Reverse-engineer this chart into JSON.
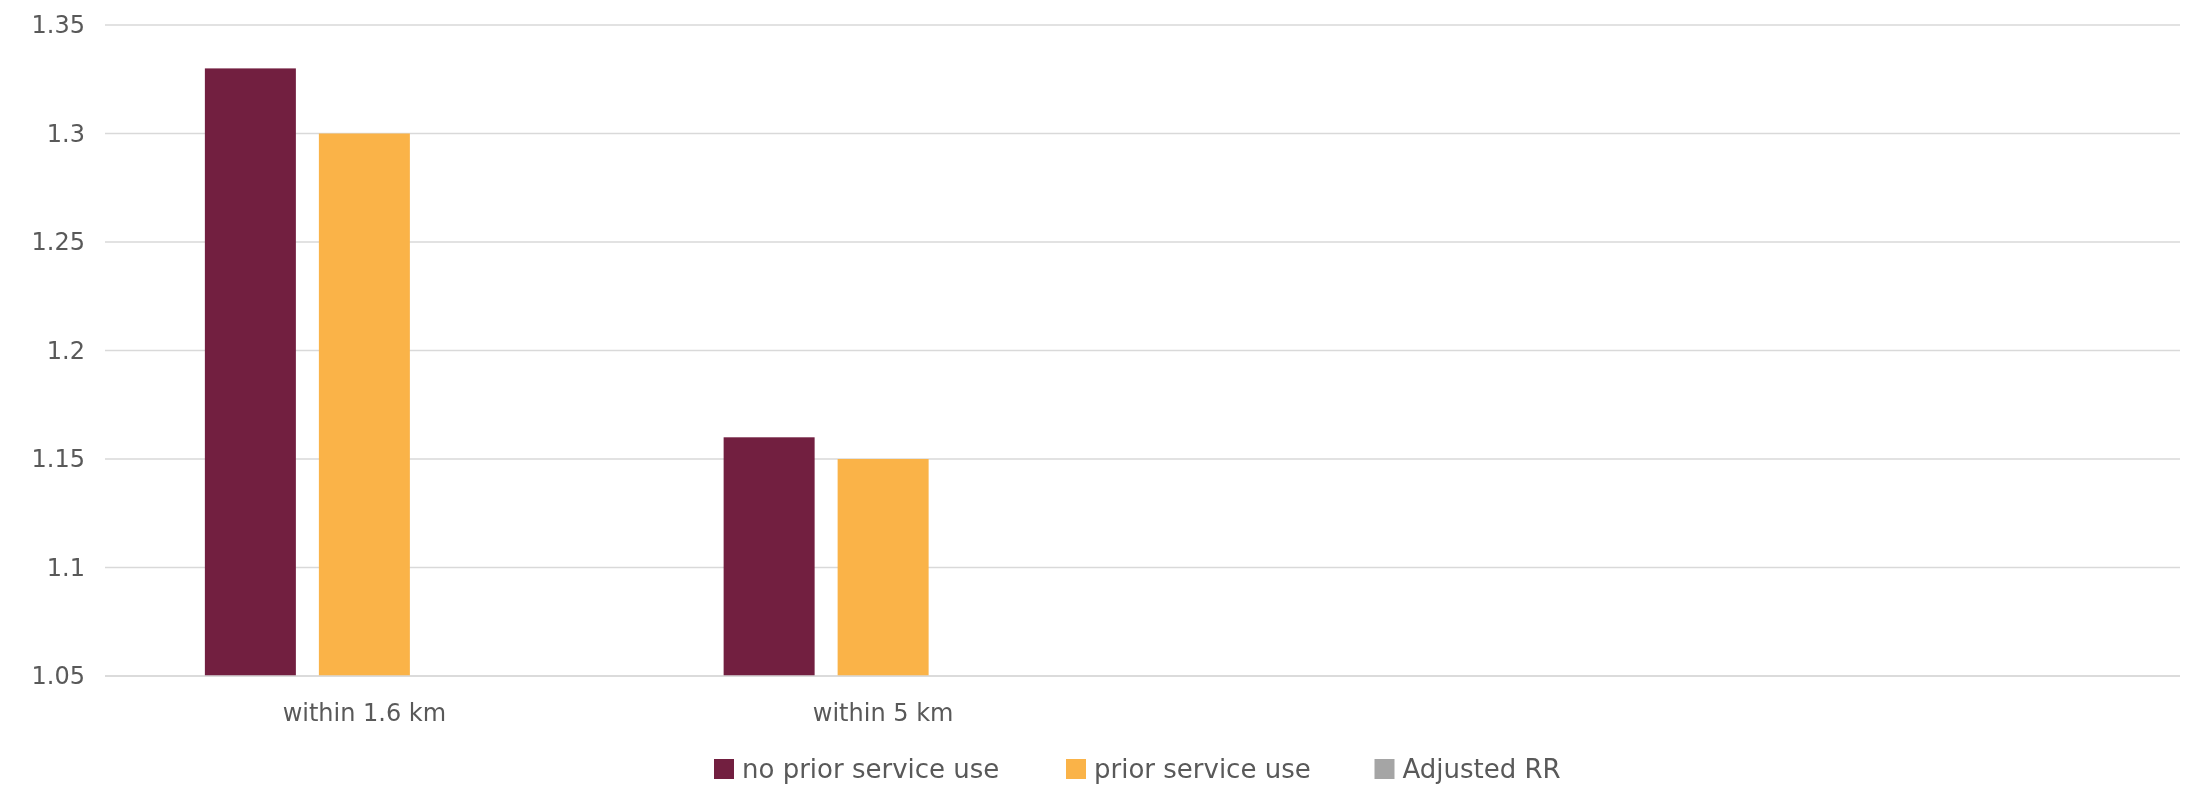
{
  "chart_data": {
    "type": "bar",
    "categories": [
      "within 1.6 km",
      "within 5 km",
      null,
      null
    ],
    "series": [
      {
        "name": "no prior service use",
        "color": "#721f40",
        "values": [
          1.33,
          1.16,
          null,
          null
        ]
      },
      {
        "name": "prior service use",
        "color": "#fab348",
        "values": [
          1.3,
          1.15,
          null,
          null
        ]
      },
      {
        "name": "Adjusted RR",
        "color": "#a5a5a5",
        "values": [
          null,
          null,
          null,
          null
        ]
      }
    ],
    "ylim": [
      1.05,
      1.35
    ],
    "yticks": [
      1.05,
      1.1,
      1.15,
      1.2,
      1.25,
      1.3,
      1.35
    ],
    "grid": "y",
    "legend": "bottom"
  }
}
